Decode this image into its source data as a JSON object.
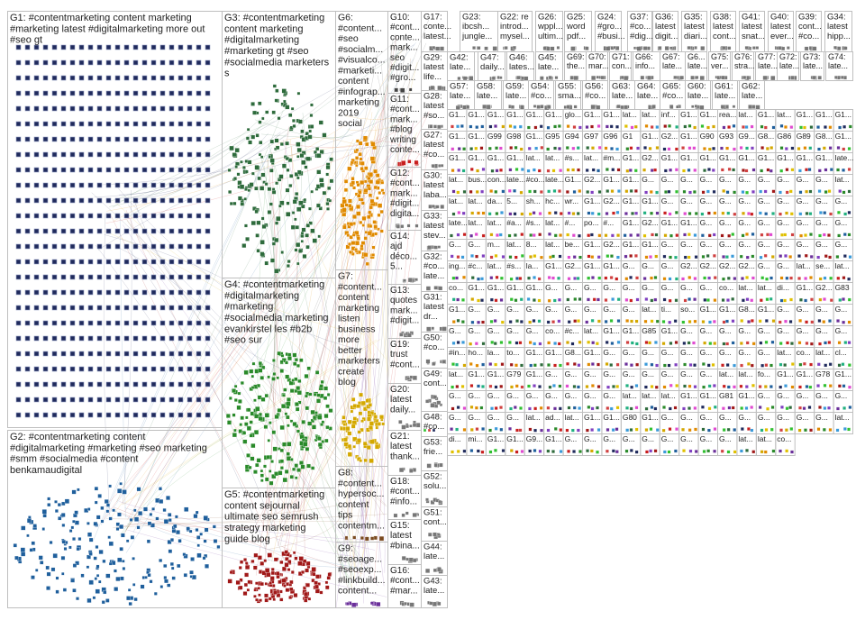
{
  "graph": {
    "groups": [
      {
        "id": "G1",
        "lines": [
          "G1: #contentmarketing content marketing",
          "#marketing latest #digitalmarketing more out",
          "#seo gt"
        ],
        "color": "#1f2a5c"
      },
      {
        "id": "G2",
        "lines": [
          "G2: #contentmarketing content",
          "#digitalmarketing #marketing #seo marketing",
          "#smm #socialmedia #content",
          "benkamaudigital"
        ],
        "color": "#1f5f9c"
      },
      {
        "id": "G3",
        "lines": [
          "G3: #contentmarketing",
          "content marketing",
          "#digitalmarketing",
          "#marketing gt #seo",
          "#socialmedia marketers",
          "s"
        ],
        "color": "#2e6b3c"
      },
      {
        "id": "G4",
        "lines": [
          "G4: #contentmarketing",
          "#digitalmarketing",
          "#marketing",
          "#socialmedia marketing",
          "evankirstel les #b2b",
          "#seo sur"
        ],
        "color": "#2a8a2a"
      },
      {
        "id": "G5",
        "lines": [
          "G5: #contentmarketing",
          "content sejournal",
          "ultimate seo semrush",
          "strategy marketing",
          "guide blog"
        ],
        "color": "#a01818"
      },
      {
        "id": "G6",
        "lines": [
          "G6:",
          "#content...",
          "#seo",
          "#socialm...",
          "#visualco...",
          "#marketi...",
          "content",
          "#infograp...",
          "marketing",
          "2019",
          "social"
        ],
        "color": "#e08a00"
      },
      {
        "id": "G7",
        "lines": [
          "G7:",
          "#content...",
          "content",
          "marketing",
          "listen",
          "business",
          "more",
          "better",
          "marketers",
          "create",
          "blog"
        ],
        "color": "#d4a800"
      },
      {
        "id": "G8",
        "lines": [
          "G8:",
          "#content...",
          "hypersoc...",
          "content",
          "tips",
          "contentm..."
        ],
        "color": "#7a4a20"
      },
      {
        "id": "G9",
        "lines": [
          "G9:",
          "#seoage...",
          "#seoexp...",
          "#linkbuild...",
          "content..."
        ],
        "color": "#6a2f9a"
      },
      {
        "id": "G10",
        "lines": [
          "G10:",
          "#cont...",
          "conte...",
          "mark...",
          "seo",
          "#digit...",
          "#gro..."
        ],
        "color": "#444444"
      },
      {
        "id": "G11",
        "lines": [
          "G11:",
          "#cont...",
          "mark...",
          "#blog",
          "writing",
          "conte..."
        ],
        "color": "#c81e1e"
      },
      {
        "id": "G12",
        "lines": [
          "G12:",
          "#cont...",
          "mark...",
          "#digit...",
          "digita..."
        ],
        "color": "#777777"
      },
      {
        "id": "G14",
        "lines": [
          "G14:",
          "ajd",
          "déco...",
          "5..."
        ],
        "color": "#777777"
      },
      {
        "id": "G13",
        "lines": [
          "G13:",
          "quotes",
          "mark...",
          "#digit..."
        ],
        "color": "#777777"
      },
      {
        "id": "G19",
        "lines": [
          "G19:",
          "trust",
          "#cont..."
        ],
        "color": "#777777"
      },
      {
        "id": "G20",
        "lines": [
          "G20:",
          "latest",
          "daily..."
        ],
        "color": "#777777"
      },
      {
        "id": "G21",
        "lines": [
          "G21:",
          "latest",
          "thank..."
        ],
        "color": "#777777"
      },
      {
        "id": "G18",
        "lines": [
          "G18:",
          "#cont...",
          "#info..."
        ],
        "color": "#777777"
      },
      {
        "id": "G15",
        "lines": [
          "G15:",
          "latest",
          "#bina..."
        ],
        "color": "#777777"
      },
      {
        "id": "G16",
        "lines": [
          "G16:",
          "#cont...",
          "#mar..."
        ],
        "color": "#777777"
      },
      {
        "id": "G17",
        "lines": [
          "G17:",
          "conte...",
          "latest..."
        ],
        "color": "#777777"
      },
      {
        "id": "G29",
        "lines": [
          "G29:",
          "latest",
          "life..."
        ],
        "color": "#777777"
      },
      {
        "id": "G28",
        "lines": [
          "G28:",
          "latest",
          "#so..."
        ],
        "color": "#777777"
      },
      {
        "id": "G27",
        "lines": [
          "G27:",
          "latest",
          "#co..."
        ],
        "color": "#777777"
      },
      {
        "id": "G30",
        "lines": [
          "G30:",
          "latest",
          "laba..."
        ],
        "color": "#777777"
      },
      {
        "id": "G33",
        "lines": [
          "G33:",
          "latest",
          "stev..."
        ],
        "color": "#777777"
      },
      {
        "id": "G32",
        "lines": [
          "G32:",
          "#co...",
          "late..."
        ],
        "color": "#777777"
      },
      {
        "id": "G31",
        "lines": [
          "G31:",
          "latest",
          "dr..."
        ],
        "color": "#777777"
      },
      {
        "id": "G50",
        "lines": [
          "G50:",
          "#co..."
        ],
        "color": "#777777"
      },
      {
        "id": "G49",
        "lines": [
          "G49:",
          "cont..."
        ],
        "color": "#777777"
      },
      {
        "id": "G48",
        "lines": [
          "G48:",
          "#co..."
        ],
        "color": "#777777"
      },
      {
        "id": "G53",
        "lines": [
          "G53:",
          "frie..."
        ],
        "color": "#777777"
      },
      {
        "id": "G52",
        "lines": [
          "G52:",
          "solu..."
        ],
        "color": "#777777"
      },
      {
        "id": "G51",
        "lines": [
          "G51:",
          "cont..."
        ],
        "color": "#777777"
      },
      {
        "id": "G44",
        "lines": [
          "G44:",
          "late..."
        ],
        "color": "#777777"
      },
      {
        "id": "G43",
        "lines": [
          "G43:",
          "late..."
        ],
        "color": "#777777"
      },
      {
        "id": "G23",
        "lines": [
          "G23:",
          "ibcsh...",
          "jungle..."
        ],
        "color": "#777777"
      },
      {
        "id": "G22",
        "lines": [
          "G22: re",
          "introd...",
          "mysel..."
        ],
        "color": "#777777"
      },
      {
        "id": "G26",
        "lines": [
          "G26:",
          "wppl...",
          "ultim..."
        ],
        "color": "#777777"
      },
      {
        "id": "G25",
        "lines": [
          "G25:",
          "word",
          "pdf..."
        ],
        "color": "#777777"
      },
      {
        "id": "G24",
        "lines": [
          "G24:",
          "#gro...",
          "#busi..."
        ],
        "color": "#777777"
      },
      {
        "id": "G37",
        "lines": [
          "G37:",
          "#co...",
          "#dig..."
        ],
        "color": "#777777"
      },
      {
        "id": "G36",
        "lines": [
          "G36:",
          "latest",
          "digit..."
        ],
        "color": "#777777"
      },
      {
        "id": "G35",
        "lines": [
          "G35:",
          "latest",
          "diari..."
        ],
        "color": "#777777"
      },
      {
        "id": "G38",
        "lines": [
          "G38:",
          "latest",
          "cont..."
        ],
        "color": "#777777"
      },
      {
        "id": "G41",
        "lines": [
          "G41:",
          "latest",
          "snat..."
        ],
        "color": "#777777"
      },
      {
        "id": "G40",
        "lines": [
          "G40:",
          "latest",
          "ever..."
        ],
        "color": "#777777"
      },
      {
        "id": "G39",
        "lines": [
          "G39:",
          "cont...",
          "#co..."
        ],
        "color": "#777777"
      },
      {
        "id": "G34",
        "lines": [
          "G34:",
          "latest",
          "hipp..."
        ],
        "color": "#777777"
      },
      {
        "id": "G42",
        "lines": [
          "G42:",
          "late..."
        ],
        "color": "#777777"
      },
      {
        "id": "G47",
        "lines": [
          "G47:",
          "daily..."
        ],
        "color": "#777777"
      },
      {
        "id": "G46",
        "lines": [
          "G46:",
          "lates..."
        ],
        "color": "#777777"
      },
      {
        "id": "G45",
        "lines": [
          "G45:",
          "late..."
        ],
        "color": "#777777"
      },
      {
        "id": "G69",
        "lines": [
          "G69:",
          "the..."
        ],
        "color": "#777777"
      },
      {
        "id": "G70",
        "lines": [
          "G70:",
          "mar..."
        ],
        "color": "#777777"
      },
      {
        "id": "G71",
        "lines": [
          "G71:",
          "con..."
        ],
        "color": "#777777"
      },
      {
        "id": "G66",
        "lines": [
          "G66:",
          "info..."
        ],
        "color": "#777777"
      },
      {
        "id": "G67",
        "lines": [
          "G67:",
          "late..."
        ],
        "color": "#777777"
      },
      {
        "id": "G6b",
        "lines": [
          "G6...",
          "late..."
        ],
        "color": "#777777"
      },
      {
        "id": "G75",
        "lines": [
          "G75:",
          "ver..."
        ],
        "color": "#777777"
      },
      {
        "id": "G76",
        "lines": [
          "G76:",
          "stra..."
        ],
        "color": "#777777"
      },
      {
        "id": "G77",
        "lines": [
          "G77:",
          "late..."
        ],
        "color": "#777777"
      },
      {
        "id": "G72",
        "lines": [
          "G72:",
          "late..."
        ],
        "color": "#777777"
      },
      {
        "id": "G73",
        "lines": [
          "G73:",
          "late..."
        ],
        "color": "#777777"
      },
      {
        "id": "G74",
        "lines": [
          "G74:",
          "late..."
        ],
        "color": "#777777"
      },
      {
        "id": "G57",
        "lines": [
          "G57:",
          "late..."
        ],
        "color": "#777777"
      },
      {
        "id": "G58",
        "lines": [
          "G58:",
          "late..."
        ],
        "color": "#777777"
      },
      {
        "id": "G59",
        "lines": [
          "G59:",
          "late..."
        ],
        "color": "#777777"
      },
      {
        "id": "G54",
        "lines": [
          "G54:",
          "#co..."
        ],
        "color": "#777777"
      },
      {
        "id": "G55",
        "lines": [
          "G55:",
          "sma..."
        ],
        "color": "#777777"
      },
      {
        "id": "G56",
        "lines": [
          "G56:",
          "#co..."
        ],
        "color": "#777777"
      },
      {
        "id": "G63",
        "lines": [
          "G63:",
          "late..."
        ],
        "color": "#777777"
      },
      {
        "id": "G64",
        "lines": [
          "G64:",
          "late..."
        ],
        "color": "#777777"
      },
      {
        "id": "G65",
        "lines": [
          "G65:",
          "#co..."
        ],
        "color": "#777777"
      },
      {
        "id": "G60",
        "lines": [
          "G60:",
          "late..."
        ],
        "color": "#777777"
      },
      {
        "id": "G61",
        "lines": [
          "G61:",
          "late..."
        ],
        "color": "#777777"
      },
      {
        "id": "G62",
        "lines": [
          "G62:",
          "late..."
        ],
        "color": "#777777"
      }
    ],
    "small_cells": [
      "G1...",
      "G1...",
      "G1...",
      "G1...",
      "G1...",
      "G1...",
      "glo...",
      "G1...",
      "G1...",
      "lat...",
      "lat...",
      "inf...",
      "G1...",
      "G1...",
      "rea...",
      "lat...",
      "G1...",
      "lat...",
      "G1...",
      "G1...",
      "G1...",
      "G1...",
      "G1...",
      "G99",
      "G98",
      "G1...",
      "G95",
      "G94",
      "G97",
      "G96",
      "G1",
      "G1...",
      "G2...",
      "G1...",
      "G90",
      "G93",
      "G9...",
      "G8...",
      "G86",
      "G89",
      "G8...",
      "G1...",
      "G1...",
      "G1...",
      "G1...",
      "G1...",
      "lat...",
      "lat...",
      "#s...",
      "lat...",
      "#m...",
      "G1...",
      "G2...",
      "G1...",
      "G1...",
      "G1...",
      "G1...",
      "G1...",
      "G1...",
      "G1...",
      "G1...",
      "G1...",
      "late...",
      "lat...",
      "bus...",
      "con...",
      "late...",
      "#co...",
      "late...",
      "G1...",
      "G2...",
      "G1...",
      "G1...",
      "G...",
      "G...",
      "G...",
      "G...",
      "G...",
      "G...",
      "G...",
      "G...",
      "G...",
      "G...",
      "lat...",
      "lat...",
      "lat...",
      "da...",
      "5...",
      "sh...",
      "hc...",
      "wr...",
      "G1...",
      "G2...",
      "G1...",
      "G1...",
      "G...",
      "G...",
      "G...",
      "G...",
      "G...",
      "G...",
      "G...",
      "G...",
      "G...",
      "G...",
      "late...",
      "lat...",
      "lat...",
      "#a...",
      "#s...",
      "lat...",
      "#...",
      "po...",
      "#...",
      "G1...",
      "G2...",
      "G1...",
      "G1...",
      "G...",
      "G...",
      "G...",
      "G...",
      "G...",
      "G...",
      "G...",
      "G...",
      "G...",
      "G...",
      "m...",
      "lat...",
      "8...",
      "lat...",
      "be...",
      "G1...",
      "G2...",
      "G1...",
      "G1...",
      "G...",
      "G...",
      "G...",
      "G...",
      "G...",
      "G...",
      "G...",
      "G...",
      "G...",
      "G...",
      "ing...",
      "#c...",
      "lat...",
      "#s...",
      "la...",
      "G1...",
      "G2...",
      "G1...",
      "G1...",
      "G...",
      "G...",
      "G...",
      "G2...",
      "G2...",
      "G2...",
      "G2...",
      "G...",
      "G...",
      "lat...",
      "se...",
      "lat...",
      "co...",
      "G1...",
      "G1...",
      "G1...",
      "G1...",
      "G...",
      "G...",
      "G...",
      "G...",
      "G...",
      "G...",
      "G...",
      "G...",
      "G...",
      "co...",
      "lat...",
      "lat...",
      "di...",
      "G1...",
      "G2...",
      "G83",
      "G1...",
      "G...",
      "G...",
      "G...",
      "G...",
      "G...",
      "G...",
      "G...",
      "G...",
      "G...",
      "lat...",
      "ti...",
      "so...",
      "G1...",
      "G1...",
      "G8...",
      "G1...",
      "G...",
      "G...",
      "G...",
      "G...",
      "G...",
      "G...",
      "G...",
      "G...",
      "G...",
      "co...",
      "#c...",
      "lat...",
      "G1...",
      "G1...",
      "G85",
      "G1...",
      "G...",
      "G...",
      "G...",
      "G...",
      "G...",
      "G...",
      "G...",
      "G...",
      "G...",
      "#in...",
      "ho...",
      "la...",
      "to...",
      "G1...",
      "G1...",
      "G8...",
      "G1...",
      "G...",
      "G...",
      "G...",
      "G...",
      "G...",
      "G...",
      "G...",
      "G...",
      "G...",
      "lat...",
      "co...",
      "lat...",
      "cl...",
      "lat...",
      "G1...",
      "G1...",
      "G79",
      "G1...",
      "G...",
      "G...",
      "G...",
      "G...",
      "G...",
      "G...",
      "G...",
      "G...",
      "G...",
      "lat...",
      "lat...",
      "fo...",
      "G1...",
      "G1...",
      "G78",
      "G1...",
      "G...",
      "G...",
      "G...",
      "G...",
      "G...",
      "G...",
      "G...",
      "G...",
      "G...",
      "lat...",
      "lat...",
      "lat...",
      "G1...",
      "G1...",
      "G81",
      "G1...",
      "G...",
      "G...",
      "G...",
      "G...",
      "G...",
      "G...",
      "G...",
      "G...",
      "G...",
      "lat...",
      "ad...",
      "lat...",
      "G1...",
      "G1...",
      "G80",
      "G1...",
      "G...",
      "G...",
      "G...",
      "G...",
      "G...",
      "G...",
      "G...",
      "G...",
      "G...",
      "lat...",
      "di...",
      "mi...",
      "G1...",
      "G1...",
      "G9...",
      "G1...",
      "G...",
      "G...",
      "G...",
      "G...",
      "G...",
      "G...",
      "G...",
      "G...",
      "G...",
      "lat...",
      "lat...",
      "co..."
    ]
  }
}
